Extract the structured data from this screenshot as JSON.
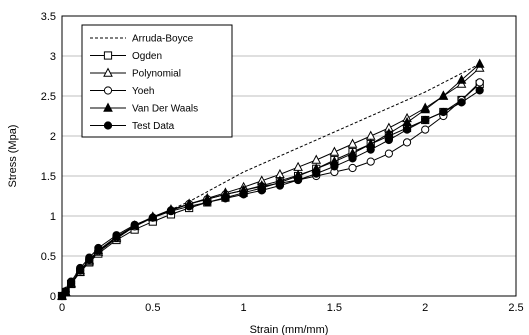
{
  "chart_data": {
    "type": "line",
    "title": "",
    "xlabel": "Strain (mm/mm)",
    "ylabel": "Stress (Mpa)",
    "xlim": [
      0,
      2.5
    ],
    "ylim": [
      0,
      3.5
    ],
    "x_ticks": [
      "0",
      "0.5",
      "1",
      "1.5",
      "2",
      "2.5"
    ],
    "y_ticks": [
      "0",
      "0.5",
      "1",
      "1.5",
      "2",
      "2.5",
      "3",
      "3.5"
    ],
    "grid": "horizontal",
    "legend_position": "top-left",
    "series": [
      {
        "name": "Arruda-Boyce",
        "line": "dashed",
        "marker": "none",
        "x": [
          0,
          0.02,
          0.05,
          0.1,
          0.15,
          0.2,
          0.3,
          0.4,
          0.5,
          0.6,
          0.7,
          1.0,
          1.5,
          2.0,
          2.3
        ],
        "y": [
          0,
          0.05,
          0.15,
          0.3,
          0.43,
          0.55,
          0.72,
          0.87,
          0.98,
          1.08,
          1.18,
          1.55,
          2.05,
          2.55,
          2.9
        ]
      },
      {
        "name": "Ogden",
        "line": "solid",
        "marker": "square-open",
        "x": [
          0,
          0.02,
          0.05,
          0.1,
          0.15,
          0.2,
          0.3,
          0.4,
          0.5,
          0.6,
          0.7,
          0.8,
          0.9,
          1.0,
          1.1,
          1.2,
          1.3,
          1.4,
          1.5,
          1.6,
          1.7,
          1.8,
          1.9,
          2.0,
          2.1,
          2.2,
          2.3
        ],
        "y": [
          0,
          0.05,
          0.15,
          0.3,
          0.42,
          0.53,
          0.7,
          0.83,
          0.93,
          1.02,
          1.1,
          1.17,
          1.23,
          1.29,
          1.35,
          1.42,
          1.5,
          1.59,
          1.7,
          1.8,
          1.9,
          2.0,
          2.1,
          2.2,
          2.3,
          2.45,
          2.65
        ]
      },
      {
        "name": "Polynomial",
        "line": "solid",
        "marker": "triangle-open",
        "x": [
          0,
          0.02,
          0.05,
          0.1,
          0.15,
          0.2,
          0.3,
          0.4,
          0.5,
          0.6,
          0.7,
          0.8,
          0.9,
          1.0,
          1.1,
          1.2,
          1.3,
          1.4,
          1.5,
          1.6,
          1.7,
          1.8,
          1.9,
          2.0,
          2.1,
          2.2,
          2.3
        ],
        "y": [
          0,
          0.05,
          0.15,
          0.3,
          0.43,
          0.55,
          0.72,
          0.87,
          0.98,
          1.07,
          1.15,
          1.22,
          1.29,
          1.36,
          1.44,
          1.52,
          1.61,
          1.7,
          1.8,
          1.9,
          2.0,
          2.1,
          2.22,
          2.35,
          2.5,
          2.65,
          2.85
        ]
      },
      {
        "name": "Yoeh",
        "line": "solid",
        "marker": "circle-open",
        "x": [
          0,
          0.02,
          0.05,
          0.1,
          0.15,
          0.2,
          0.3,
          0.4,
          0.5,
          0.6,
          0.7,
          0.8,
          0.9,
          1.0,
          1.1,
          1.2,
          1.3,
          1.4,
          1.5,
          1.6,
          1.7,
          1.8,
          1.9,
          2.0,
          2.1,
          2.2,
          2.3
        ],
        "y": [
          0,
          0.05,
          0.16,
          0.32,
          0.45,
          0.56,
          0.73,
          0.87,
          0.98,
          1.07,
          1.15,
          1.21,
          1.27,
          1.32,
          1.37,
          1.41,
          1.45,
          1.5,
          1.55,
          1.6,
          1.68,
          1.78,
          1.92,
          2.08,
          2.25,
          2.45,
          2.67
        ]
      },
      {
        "name": "Van Der Waals",
        "line": "solid",
        "marker": "triangle-filled",
        "x": [
          0,
          0.02,
          0.05,
          0.1,
          0.15,
          0.2,
          0.3,
          0.4,
          0.5,
          0.6,
          0.7,
          0.8,
          0.9,
          1.0,
          1.1,
          1.2,
          1.3,
          1.4,
          1.5,
          1.6,
          1.7,
          1.8,
          1.9,
          2.0,
          2.1,
          2.2,
          2.3
        ],
        "y": [
          0,
          0.05,
          0.16,
          0.32,
          0.45,
          0.57,
          0.74,
          0.88,
          0.99,
          1.08,
          1.15,
          1.21,
          1.27,
          1.32,
          1.38,
          1.44,
          1.51,
          1.59,
          1.68,
          1.78,
          1.9,
          2.03,
          2.17,
          2.33,
          2.5,
          2.7,
          2.9
        ]
      },
      {
        "name": "Test Data",
        "line": "solid",
        "marker": "circle-filled",
        "x": [
          0,
          0.02,
          0.05,
          0.1,
          0.15,
          0.2,
          0.3,
          0.4,
          0.5,
          0.6,
          0.7,
          0.8,
          0.9,
          1.0,
          1.1,
          1.2,
          1.3,
          1.4,
          1.5,
          1.6,
          1.7,
          1.8,
          1.9,
          2.0,
          2.1,
          2.2,
          2.3
        ],
        "y": [
          0,
          0.06,
          0.18,
          0.35,
          0.48,
          0.6,
          0.76,
          0.89,
          0.98,
          1.06,
          1.12,
          1.17,
          1.22,
          1.27,
          1.32,
          1.38,
          1.45,
          1.53,
          1.62,
          1.72,
          1.83,
          1.95,
          2.08,
          2.2,
          2.3,
          2.42,
          2.57
        ]
      }
    ]
  },
  "legend": {
    "entries": [
      "Arruda-Boyce",
      "Ogden",
      "Polynomial",
      "Yoeh",
      "Van Der Waals",
      "Test Data"
    ]
  },
  "colors": {
    "line": "#000000",
    "grid": "#bfbfbf",
    "background": "#ffffff"
  }
}
